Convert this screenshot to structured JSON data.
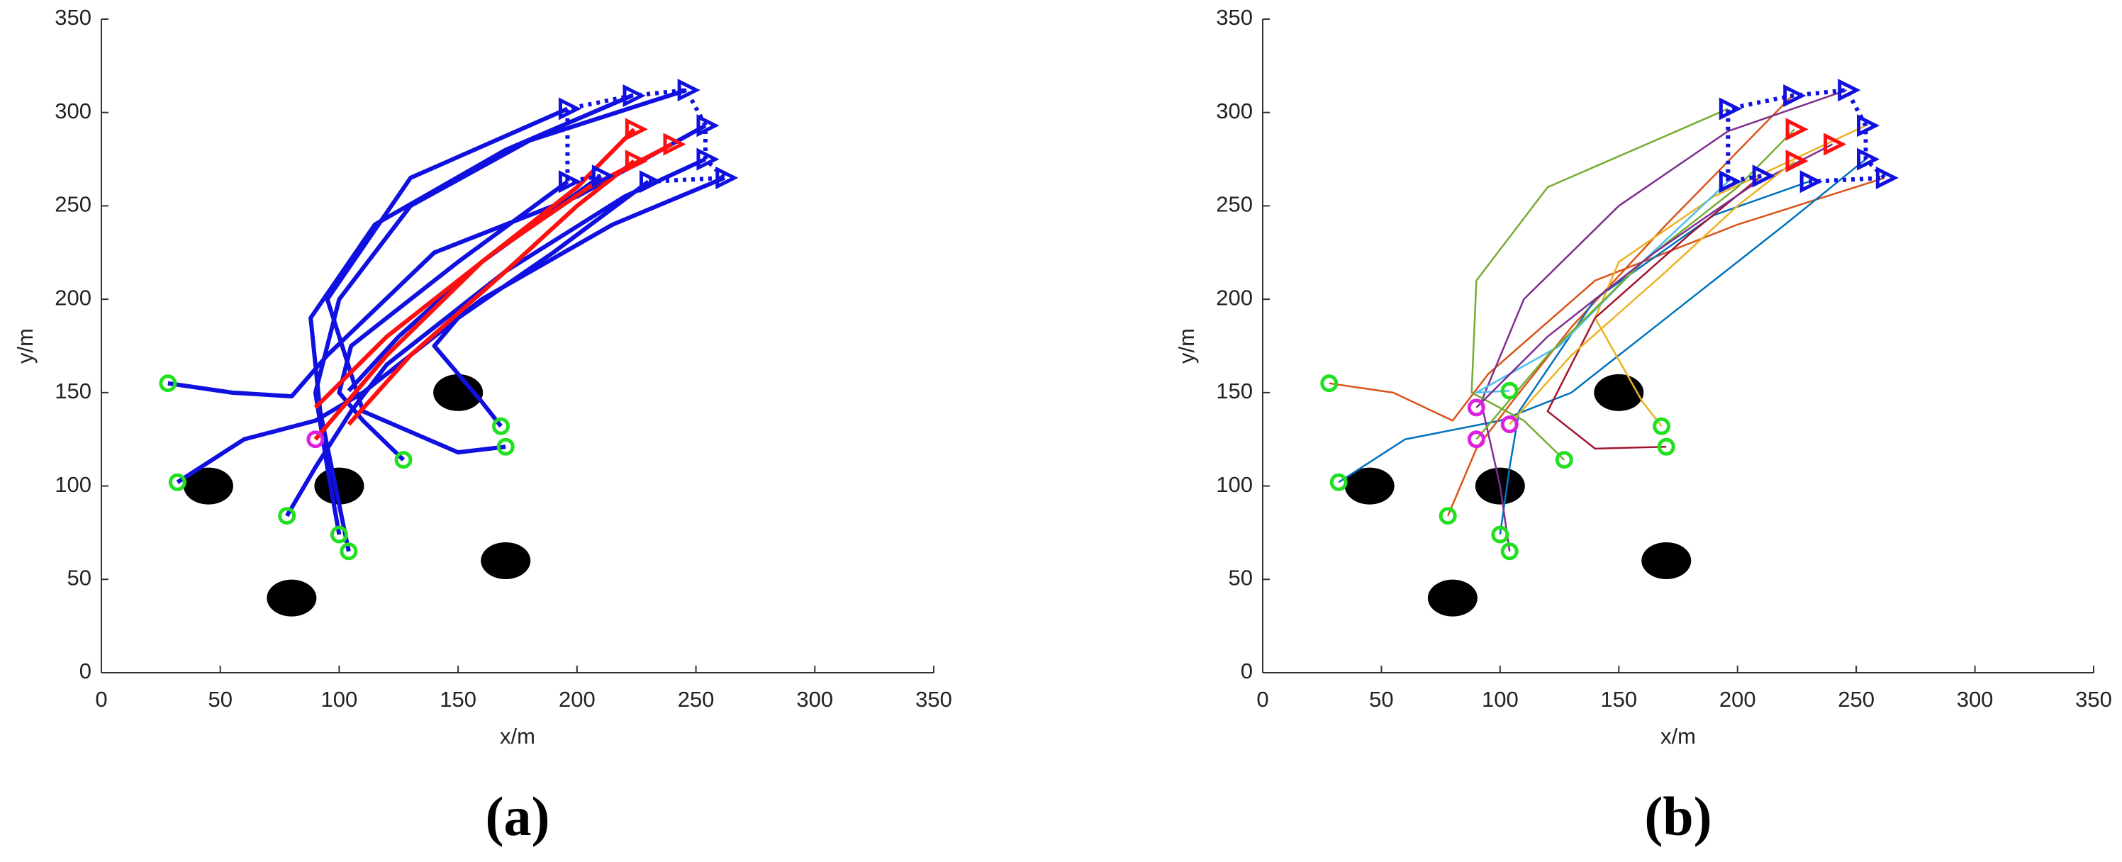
{
  "chart_data": [
    {
      "type": "line",
      "xlabel": "x/m",
      "ylabel": "y/m",
      "caption": "(a)",
      "xlim": [
        0,
        350
      ],
      "ylim": [
        0,
        350
      ],
      "xticks": [
        0,
        50,
        100,
        150,
        200,
        250,
        300,
        350
      ],
      "yticks": [
        0,
        50,
        100,
        150,
        200,
        250,
        300,
        350
      ],
      "series": [
        {
          "style": "ellipse",
          "color": "#000000",
          "x": [
            45,
            100,
            150,
            80,
            170
          ],
          "values": [
            100,
            100,
            150,
            40,
            60
          ]
        },
        {
          "style": "line",
          "color": "#1010e0",
          "x": [
            28,
            55,
            80,
            95,
            140,
            200,
            254
          ],
          "values": [
            155,
            150,
            148,
            170,
            225,
            255,
            293
          ]
        },
        {
          "style": "line",
          "color": "#1010e0",
          "x": [
            32,
            60,
            90,
            110,
            160,
            215,
            262
          ],
          "values": [
            102,
            125,
            135,
            150,
            200,
            240,
            265
          ]
        },
        {
          "style": "line",
          "color": "#1010e0",
          "x": [
            78,
            90,
            105,
            120,
            170,
            220,
            254
          ],
          "values": [
            84,
            110,
            140,
            165,
            215,
            255,
            275
          ]
        },
        {
          "style": "line",
          "color": "#1010e0",
          "x": [
            100,
            95,
            90,
            100,
            130,
            180,
            246
          ],
          "values": [
            74,
            110,
            150,
            200,
            250,
            285,
            312
          ]
        },
        {
          "style": "line",
          "color": "#1010e0",
          "x": [
            104,
            100,
            92,
            88,
            115,
            170,
            223
          ],
          "values": [
            65,
            90,
            140,
            190,
            240,
            280,
            309
          ]
        },
        {
          "style": "line",
          "color": "#1010e0",
          "x": [
            127,
            110,
            100,
            105,
            150,
            196
          ],
          "values": [
            114,
            135,
            150,
            175,
            220,
            263
          ]
        },
        {
          "style": "line",
          "color": "#1010e0",
          "x": [
            168,
            160,
            140,
            150,
            190,
            230
          ],
          "values": [
            132,
            145,
            175,
            190,
            225,
            263
          ]
        },
        {
          "style": "line",
          "color": "#1010e0",
          "x": [
            170,
            150,
            110,
            95,
            130,
            196
          ],
          "values": [
            121,
            118,
            140,
            200,
            265,
            302
          ]
        },
        {
          "style": "line",
          "color": "#1010e0",
          "x": [
            104,
            125,
            160,
            210
          ],
          "values": [
            151,
            180,
            220,
            266
          ]
        },
        {
          "style": "line",
          "color": "#ff1010",
          "x": [
            90,
            120,
            160,
            200,
            224
          ],
          "values": [
            125,
            170,
            220,
            260,
            291
          ]
        },
        {
          "style": "line",
          "color": "#ff1010",
          "x": [
            90,
            120,
            165,
            205,
            240
          ],
          "values": [
            142,
            180,
            225,
            260,
            283
          ]
        },
        {
          "style": "line",
          "color": "#ff1010",
          "x": [
            104,
            130,
            170,
            200,
            224
          ],
          "values": [
            133,
            170,
            215,
            250,
            274
          ]
        },
        {
          "style": "dotted",
          "color": "#1010e0",
          "x": [
            210,
            196,
            196,
            223,
            246,
            254,
            254,
            262,
            230
          ],
          "values": [
            266,
            263,
            302,
            309,
            312,
            293,
            275,
            265,
            263
          ]
        },
        {
          "style": "triangle",
          "color": "#1010e0",
          "x": [
            196,
            223,
            246,
            254,
            254,
            262,
            230,
            210,
            196
          ],
          "values": [
            302,
            309,
            312,
            293,
            275,
            265,
            263,
            266,
            263
          ]
        },
        {
          "style": "triangle",
          "color": "#ff1010",
          "x": [
            224,
            240,
            224
          ],
          "values": [
            291,
            283,
            274
          ]
        },
        {
          "style": "circle",
          "color": "#20e020",
          "x": [
            28,
            32,
            78,
            100,
            104,
            127,
            168,
            170
          ],
          "values": [
            155,
            102,
            84,
            74,
            65,
            114,
            132,
            121
          ]
        },
        {
          "style": "circle",
          "color": "#e020e0",
          "x": [
            90
          ],
          "values": [
            125
          ]
        }
      ]
    },
    {
      "type": "line",
      "xlabel": "x/m",
      "ylabel": "y/m",
      "caption": "(b)",
      "xlim": [
        0,
        350
      ],
      "ylim": [
        0,
        350
      ],
      "xticks": [
        0,
        50,
        100,
        150,
        200,
        250,
        300,
        350
      ],
      "yticks": [
        0,
        50,
        100,
        150,
        200,
        250,
        300,
        350
      ],
      "series": [
        {
          "style": "ellipse",
          "color": "#000000",
          "x": [
            45,
            100,
            150,
            80,
            170
          ],
          "values": [
            100,
            100,
            150,
            40,
            60
          ]
        },
        {
          "style": "thin",
          "color": "#D95319",
          "x": [
            28,
            55,
            80,
            95,
            140,
            200,
            262
          ],
          "values": [
            155,
            150,
            135,
            160,
            210,
            240,
            265
          ]
        },
        {
          "style": "thin",
          "color": "#0072BD",
          "x": [
            32,
            60,
            100,
            130,
            175,
            220,
            254
          ],
          "values": [
            102,
            125,
            135,
            150,
            195,
            240,
            275
          ]
        },
        {
          "style": "thin",
          "color": "#D95319",
          "x": [
            78,
            90,
            105,
            130,
            170,
            223
          ],
          "values": [
            84,
            120,
            145,
            185,
            240,
            309
          ]
        },
        {
          "style": "thin",
          "color": "#0072BD",
          "x": [
            100,
            104,
            108,
            140,
            190,
            230
          ],
          "values": [
            74,
            110,
            140,
            200,
            245,
            263
          ]
        },
        {
          "style": "thin",
          "color": "#7E2F8E",
          "x": [
            104,
            100,
            92,
            110,
            150,
            196,
            246
          ],
          "values": [
            65,
            100,
            145,
            200,
            250,
            290,
            312
          ]
        },
        {
          "style": "thin",
          "color": "#77AC30",
          "x": [
            127,
            110,
            88,
            90,
            120,
            196
          ],
          "values": [
            114,
            135,
            150,
            210,
            260,
            302
          ]
        },
        {
          "style": "thin",
          "color": "#EDB120",
          "x": [
            168,
            160,
            140,
            150,
            190,
            254
          ],
          "values": [
            132,
            145,
            190,
            220,
            255,
            293
          ]
        },
        {
          "style": "thin",
          "color": "#A2142F",
          "x": [
            170,
            140,
            120,
            140,
            180,
            210
          ],
          "values": [
            121,
            120,
            140,
            190,
            235,
            266
          ]
        },
        {
          "style": "thin",
          "color": "#4DBEEE",
          "x": [
            104,
            90,
            125,
            160,
            196
          ],
          "values": [
            151,
            150,
            175,
            220,
            263
          ]
        },
        {
          "style": "thin",
          "color": "#77AC30",
          "x": [
            90,
            120,
            160,
            200,
            224
          ],
          "values": [
            125,
            170,
            220,
            260,
            291
          ]
        },
        {
          "style": "thin",
          "color": "#7E2F8E",
          "x": [
            90,
            120,
            165,
            205,
            240
          ],
          "values": [
            142,
            180,
            225,
            260,
            283
          ]
        },
        {
          "style": "thin",
          "color": "#EDB120",
          "x": [
            104,
            130,
            170,
            200,
            224
          ],
          "values": [
            133,
            170,
            215,
            250,
            274
          ]
        },
        {
          "style": "dotted",
          "color": "#1010e0",
          "x": [
            210,
            196,
            196,
            223,
            246,
            254,
            254,
            262,
            230
          ],
          "values": [
            266,
            263,
            302,
            309,
            312,
            293,
            275,
            265,
            263
          ]
        },
        {
          "style": "triangle",
          "color": "#1010e0",
          "x": [
            196,
            223,
            246,
            254,
            254,
            262,
            230,
            210,
            196
          ],
          "values": [
            302,
            309,
            312,
            293,
            275,
            265,
            263,
            266,
            263
          ]
        },
        {
          "style": "triangle",
          "color": "#ff1010",
          "x": [
            224,
            240,
            224
          ],
          "values": [
            291,
            283,
            274
          ]
        },
        {
          "style": "circle",
          "color": "#20e020",
          "x": [
            28,
            32,
            78,
            100,
            104,
            127,
            168,
            170,
            104
          ],
          "values": [
            155,
            102,
            84,
            74,
            65,
            114,
            132,
            121,
            151
          ]
        },
        {
          "style": "circle",
          "color": "#e020e0",
          "x": [
            90,
            90,
            104
          ],
          "values": [
            142,
            125,
            133
          ]
        }
      ]
    }
  ]
}
